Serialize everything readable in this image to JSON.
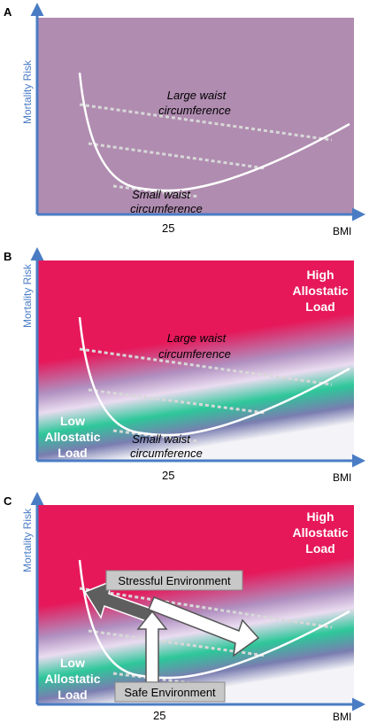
{
  "panels": [
    {
      "letter": "A",
      "y_axis_label": "Mortality Risk",
      "x_axis_label": "BMI",
      "x_tick": "25",
      "large_waist": [
        "Large waist",
        "circumference"
      ],
      "small_waist": [
        "Small waist",
        "circumference"
      ]
    },
    {
      "letter": "B",
      "y_axis_label": "Mortality Risk",
      "x_axis_label": "BMI",
      "x_tick": "25",
      "large_waist": [
        "Large waist",
        "circumference"
      ],
      "small_waist": [
        "Small waist",
        "circumference"
      ],
      "high_load": [
        "High",
        "Allostatic",
        "Load"
      ],
      "low_load": [
        "Low",
        "Allostatic",
        "Load"
      ]
    },
    {
      "letter": "C",
      "y_axis_label": "Mortality Risk",
      "x_axis_label": "BMI",
      "x_tick": "25",
      "high_load": [
        "High",
        "Allostatic",
        "Load"
      ],
      "low_load": [
        "Low",
        "Allostatic",
        "Load"
      ],
      "stressful": "Stressful Environment",
      "safe": "Safe Environment"
    }
  ],
  "colors": {
    "axis": "#4a7cc4",
    "panel_a_fill": "#b08cb0",
    "high_load": "#e6185a",
    "low_load": "#2ec79a",
    "curve": "#ffffff",
    "dotted": "#d8d8d8",
    "arrow_dark": "#5e5e5e",
    "label_box": "#c8c8c8"
  }
}
